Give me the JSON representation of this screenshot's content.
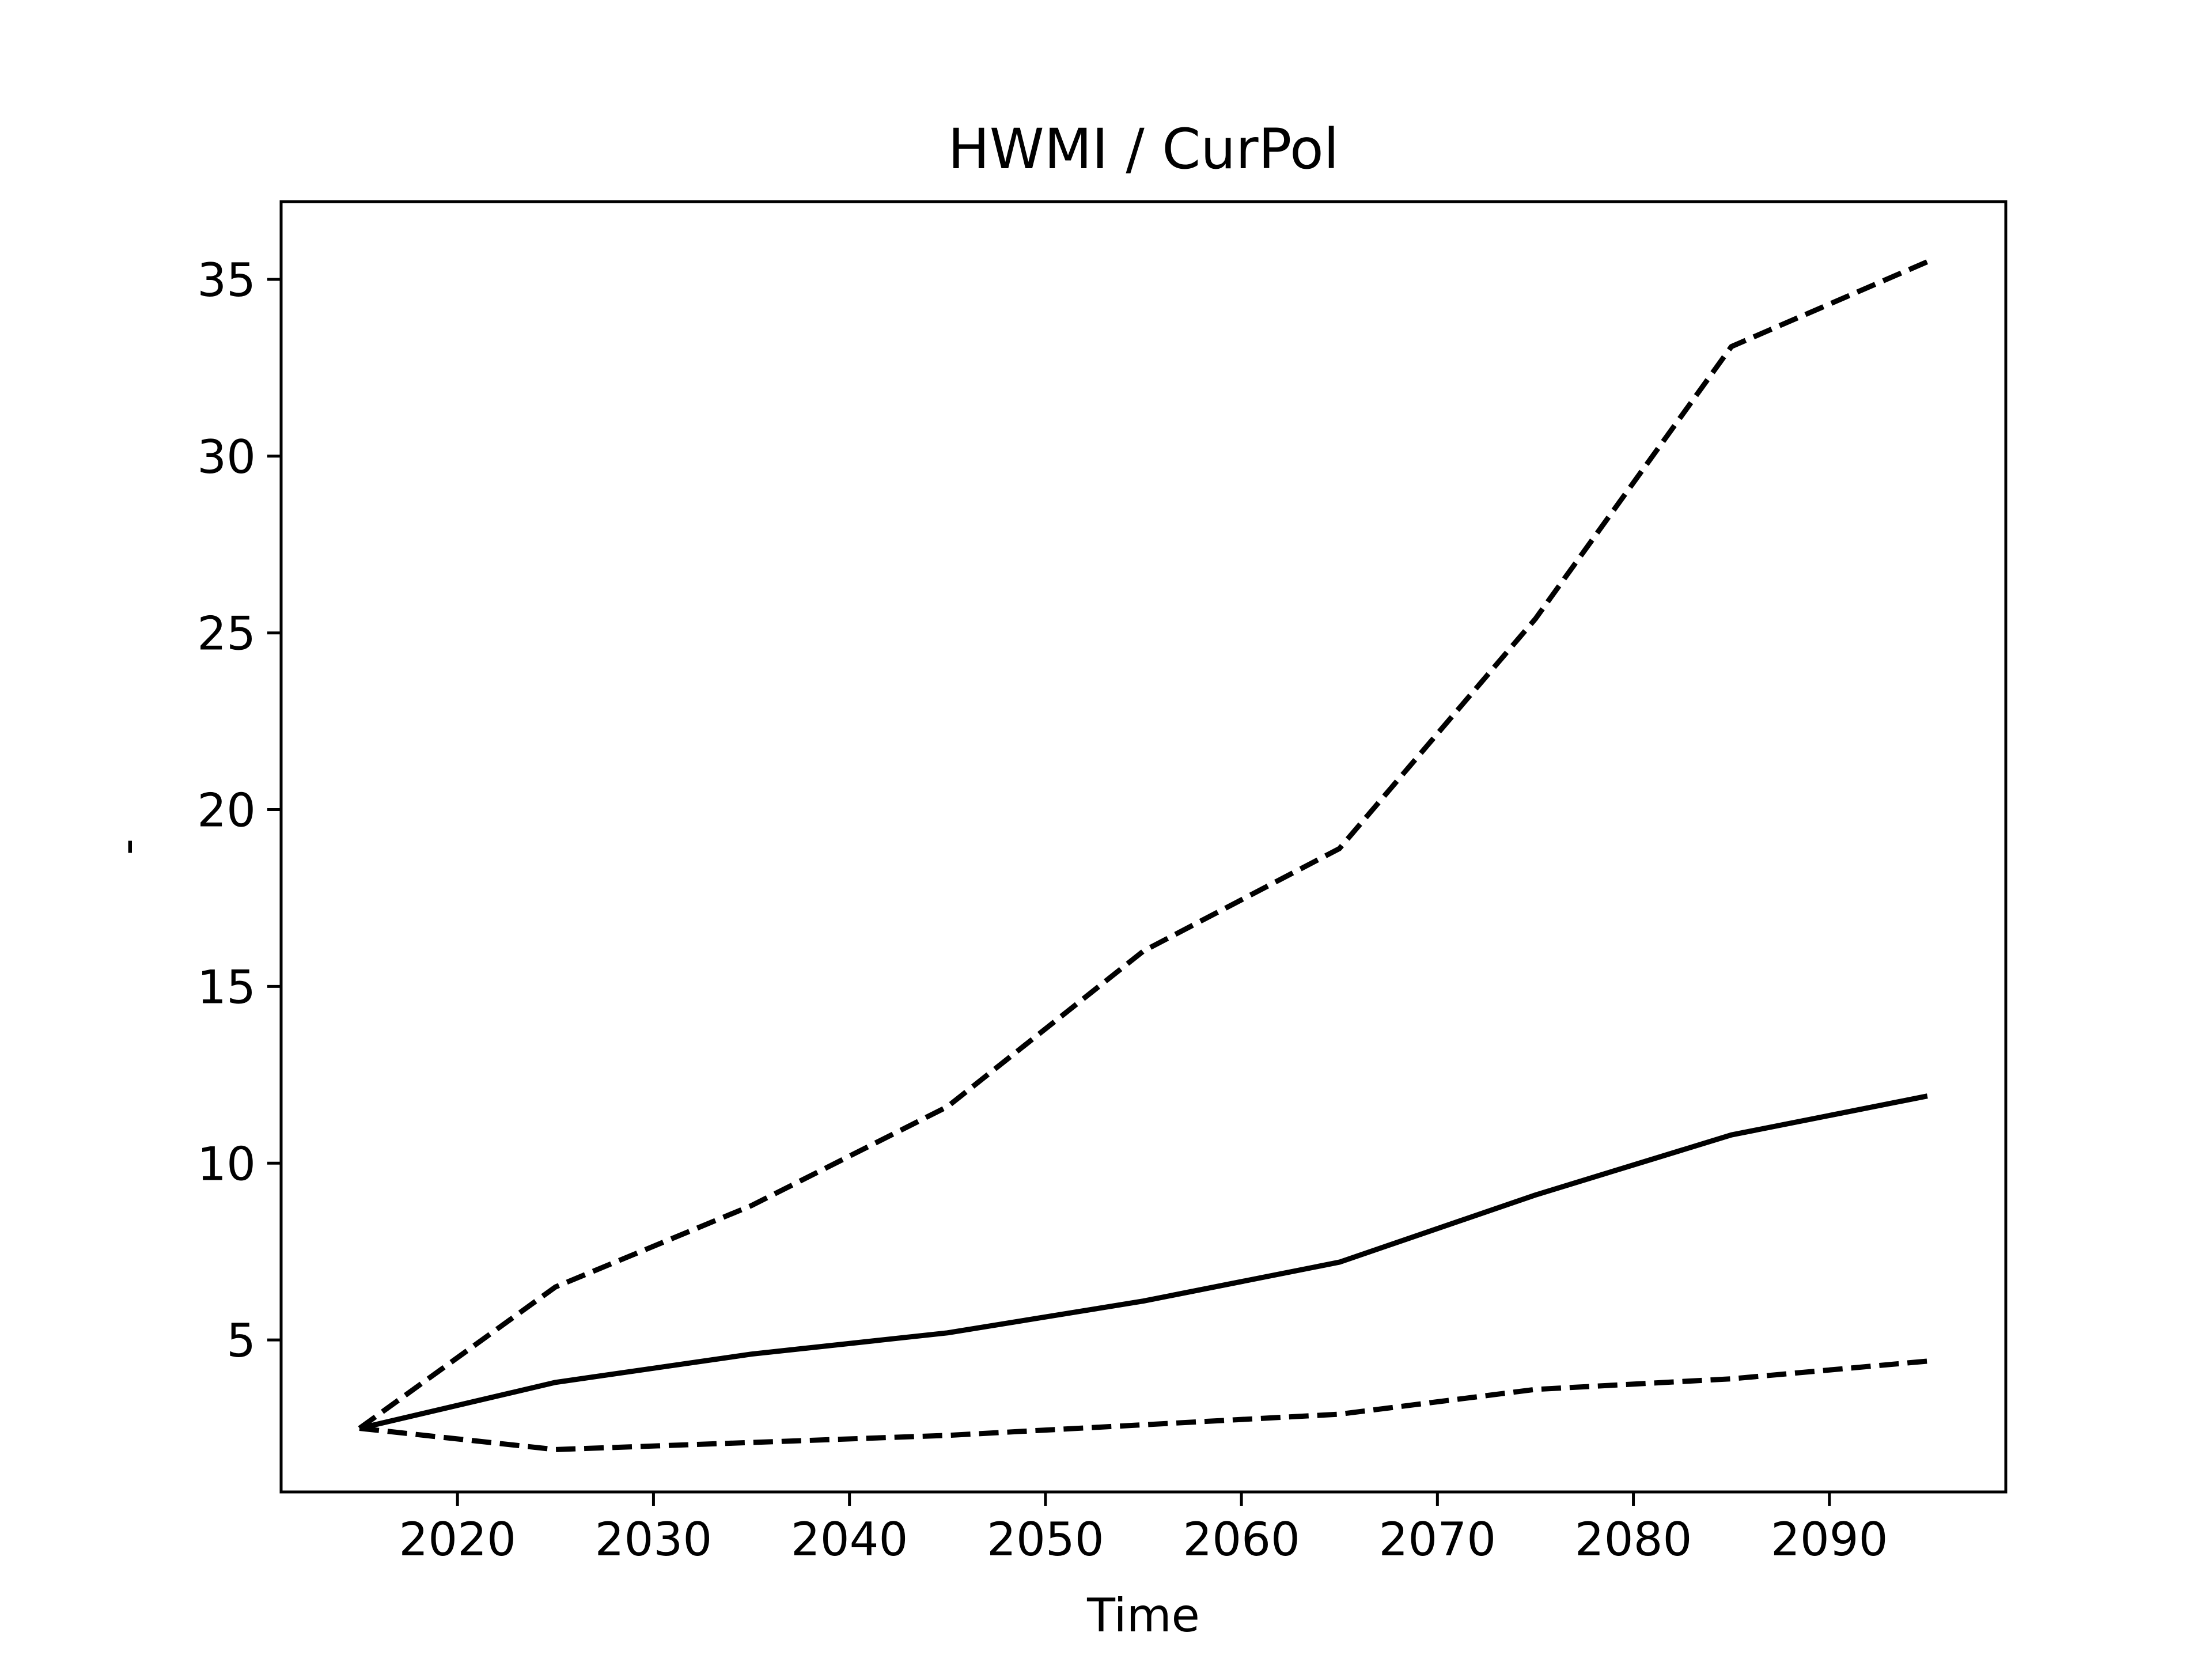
{
  "chart_data": {
    "type": "line",
    "title": "HWMI / CurPol",
    "xlabel": "Time",
    "ylabel": "-",
    "xlim": [
      2011,
      2099
    ],
    "ylim": [
      0.7,
      37.2
    ],
    "xticks": [
      2020,
      2030,
      2040,
      2050,
      2060,
      2070,
      2080,
      2090
    ],
    "yticks": [
      5,
      10,
      15,
      20,
      25,
      30,
      35
    ],
    "grid": false,
    "legend": "none",
    "x": [
      2015,
      2025,
      2035,
      2045,
      2055,
      2065,
      2075,
      2085,
      2095
    ],
    "series": [
      {
        "style": "solid",
        "color": "#000000",
        "values": [
          2.5,
          3.8,
          4.6,
          5.2,
          6.1,
          7.2,
          9.1,
          10.8,
          11.9
        ]
      },
      {
        "style": "dashed",
        "color": "#000000",
        "values": [
          2.5,
          6.5,
          8.8,
          11.6,
          16.0,
          18.9,
          25.4,
          33.1,
          35.5
        ]
      },
      {
        "style": "dashed",
        "color": "#000000",
        "values": [
          2.5,
          1.9,
          2.1,
          2.3,
          2.6,
          2.9,
          3.6,
          3.9,
          4.4
        ]
      }
    ]
  }
}
